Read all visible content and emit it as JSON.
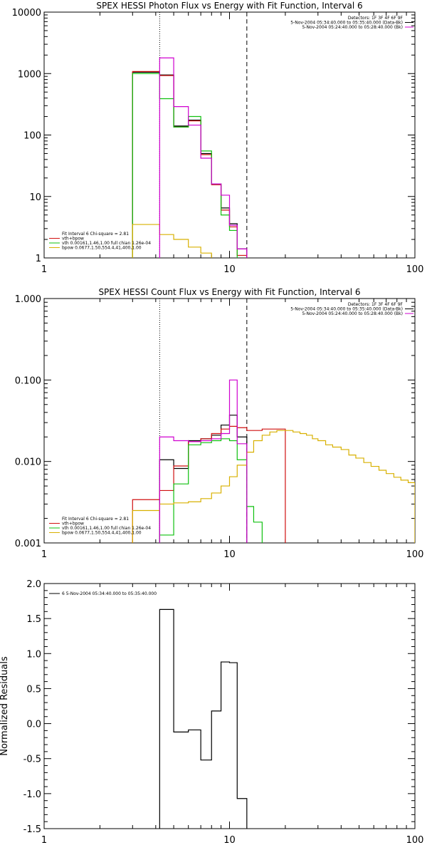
{
  "colors": {
    "black": "#000000",
    "red": "#d01010",
    "green": "#10c010",
    "yellow": "#d8b000",
    "magenta": "#d000d0"
  },
  "chart_data": [
    {
      "type": "line",
      "title": "SPEX HESSI Photon Flux vs Energy with Fit Function, Interval 6",
      "xlabel": "",
      "ylabel": "",
      "xscale": "log",
      "yscale": "log",
      "xlim": [
        1,
        100
      ],
      "ylim": [
        1,
        10000
      ],
      "x_ticks": [
        1,
        10,
        100
      ],
      "x_tick_labels": [
        "1",
        "10",
        "100"
      ],
      "y_ticks": [
        1,
        10,
        100,
        1000,
        10000
      ],
      "y_tick_labels": [
        "1",
        "10",
        "100",
        "1000",
        "10000"
      ],
      "vlines": [
        {
          "x": 4.2,
          "style": "dotted"
        },
        {
          "x": 12.4,
          "style": "dashed"
        }
      ],
      "legend_top_right": [
        {
          "text": "Detectors: 1F 3F 4F 6F 9F",
          "color": "#000000"
        },
        {
          "text": "5-Nov-2004 05:34:40.000 to 05:35:40.000 (Data-Bk)",
          "color": "#000000",
          "swatch": "#000000"
        },
        {
          "text": "5-Nov-2004 05:24:40.000 to 05:28:40.000 (Bk)",
          "color": "#000000",
          "swatch": "#d000d0"
        }
      ],
      "legend_bottom_left": [
        {
          "text": "Fit Interval 6   Chi-square = 2.81",
          "color": "#000000"
        },
        {
          "text": "vth+bpow",
          "color": "#000000",
          "swatch": "#d01010"
        },
        {
          "text": "vth 0.00161,1.46,1.00  full chian 1.26e-04",
          "color": "#000000",
          "swatch": "#10c010"
        },
        {
          "text": "bpow 0.0677,1.50,554.4,41,400,1.00",
          "color": "#000000",
          "swatch": "#d8b000"
        }
      ],
      "series": [
        {
          "color": "#000000",
          "edges": [
            3,
            4.2,
            5,
            6,
            7,
            8,
            9,
            10,
            11,
            12.4
          ],
          "values": [
            1050,
            950,
            140,
            175,
            50,
            16,
            6.5,
            3.6,
            1.4
          ]
        },
        {
          "color": "#d01010",
          "edges": [
            3,
            4.2,
            5,
            6,
            7,
            8,
            9,
            10,
            11,
            12.4
          ],
          "values": [
            1080,
            930,
            135,
            170,
            48,
            15.5,
            6,
            3.2,
            1.1
          ]
        },
        {
          "color": "#10c010",
          "edges": [
            3,
            4.2,
            5,
            6,
            7,
            8,
            9,
            10,
            11,
            12.4
          ],
          "values": [
            1000,
            390,
            135,
            200,
            55,
            16,
            5,
            2.8,
            1
          ]
        },
        {
          "color": "#d8b000",
          "edges": [
            3,
            4.2,
            5,
            6,
            7,
            8,
            9,
            10,
            11,
            12.4
          ],
          "values": [
            3.5,
            2.4,
            2,
            1.5,
            1.2,
            1,
            1,
            1,
            1
          ]
        },
        {
          "color": "#d000d0",
          "edges": [
            4.2,
            5,
            6,
            7,
            8,
            9,
            10,
            11,
            12.4
          ],
          "values": [
            1800,
            290,
            145,
            42,
            16,
            10.5,
            3.4,
            1.4
          ]
        }
      ]
    },
    {
      "type": "line",
      "title": "SPEX HESSI Count Flux vs Energy with Fit Function, Interval 6",
      "xlabel": "",
      "ylabel": "",
      "xscale": "log",
      "yscale": "log",
      "xlim": [
        1,
        100
      ],
      "ylim": [
        0.001,
        1
      ],
      "x_ticks": [
        1,
        10,
        100
      ],
      "x_tick_labels": [
        "1",
        "10",
        "100"
      ],
      "y_ticks": [
        0.001,
        0.01,
        0.1,
        1
      ],
      "y_tick_labels": [
        "0.001",
        "0.010",
        "0.100",
        "1.000"
      ],
      "vlines": [
        {
          "x": 4.2,
          "style": "dotted"
        },
        {
          "x": 12.4,
          "style": "dashed"
        }
      ],
      "legend_top_right": [
        {
          "text": "Detectors: 1F 3F 4F 6F 9F",
          "color": "#000000"
        },
        {
          "text": "5-Nov-2004 05:34:40.000 to 05:35:40.000 (Data-Bk)",
          "color": "#000000",
          "swatch": "#000000"
        },
        {
          "text": "5-Nov-2004 05:24:40.000 to 05:28:40.000 (Bk)",
          "color": "#000000",
          "swatch": "#d000d0"
        }
      ],
      "legend_bottom_left": [
        {
          "text": "Fit Interval 6   Chi-square = 2.81",
          "color": "#000000"
        },
        {
          "text": "vth+bpow",
          "color": "#000000",
          "swatch": "#d01010"
        },
        {
          "text": "vth 0.00161,1.46,1.00  full chian 1.26e-04",
          "color": "#000000",
          "swatch": "#10c010"
        },
        {
          "text": "bpow 0.0677,1.50,554.4,41,400,1.00",
          "color": "#000000",
          "swatch": "#d8b000"
        }
      ],
      "series": [
        {
          "color": "#000000",
          "edges": [
            4.2,
            5,
            6,
            7,
            8,
            9,
            10,
            11,
            12.4
          ],
          "values": [
            0.0105,
            0.0082,
            0.018,
            0.019,
            0.021,
            0.028,
            0.037,
            0.02
          ]
        },
        {
          "color": "#d01010",
          "edges": [
            3,
            4.2,
            5,
            6,
            7,
            8,
            9,
            10,
            11,
            12.4,
            13.5,
            15,
            16.5,
            18,
            20
          ],
          "values": [
            0.0034,
            0.0044,
            0.0088,
            0.0175,
            0.019,
            0.022,
            0.025,
            0.027,
            0.026,
            0.024,
            0.024,
            0.025,
            0.025,
            0.025
          ]
        },
        {
          "color": "#10c010",
          "edges": [
            4.2,
            5,
            6,
            7,
            8,
            9,
            10,
            11,
            12.4,
            13.5,
            15,
            16.5
          ],
          "values": [
            0.00125,
            0.0053,
            0.016,
            0.017,
            0.018,
            0.019,
            0.018,
            0.0105,
            0.0028,
            0.0018,
            0.001
          ]
        },
        {
          "color": "#d8b000",
          "edges": [
            3,
            4.2,
            5,
            6,
            7,
            8,
            9,
            10,
            11,
            12.4,
            13.5,
            15,
            16.5,
            18,
            20,
            22,
            24,
            26,
            28,
            30,
            33,
            36,
            40,
            44,
            48,
            53,
            58,
            64,
            70,
            77,
            84,
            92,
            100
          ],
          "values": [
            0.0025,
            0.003,
            0.0031,
            0.0032,
            0.0035,
            0.0041,
            0.005,
            0.0065,
            0.009,
            0.013,
            0.018,
            0.021,
            0.023,
            0.024,
            0.024,
            0.023,
            0.022,
            0.021,
            0.019,
            0.018,
            0.016,
            0.015,
            0.014,
            0.012,
            0.011,
            0.0097,
            0.0087,
            0.0078,
            0.0071,
            0.0064,
            0.0059,
            0.0055
          ]
        },
        {
          "color": "#d000d0",
          "edges": [
            4.2,
            5,
            6,
            7,
            8,
            9,
            10,
            11,
            12.4
          ],
          "values": [
            0.02,
            0.018,
            0.0175,
            0.018,
            0.019,
            0.022,
            0.1,
            0.0165
          ]
        }
      ]
    },
    {
      "type": "line",
      "title": "",
      "xlabel": "",
      "ylabel": "Normalized Residuals",
      "xscale": "log",
      "yscale": "linear",
      "xlim": [
        1,
        100
      ],
      "ylim": [
        -1.5,
        2.0
      ],
      "x_ticks": [
        1,
        10,
        100
      ],
      "x_tick_labels": [
        "1",
        "10",
        "100"
      ],
      "y_ticks": [
        -1.5,
        -1.0,
        -0.5,
        0.0,
        0.5,
        1.0,
        1.5,
        2.0
      ],
      "y_tick_labels": [
        "-1.5",
        "-1.0",
        "-0.5",
        "0.0",
        "0.5",
        "1.0",
        "1.5",
        "2.0"
      ],
      "vlines": [],
      "legend_top_left": [
        {
          "text": "6  5-Nov-2004 05:34:40.000 to 05:35:40.000",
          "color": "#000000",
          "swatch": "#000000"
        }
      ],
      "legend_bottom_left": [],
      "legend_top_right": [],
      "series": [
        {
          "color": "#000000",
          "edges": [
            4.2,
            5,
            6,
            7,
            8,
            9,
            10,
            11,
            12.4
          ],
          "values": [
            1.63,
            -0.12,
            -0.09,
            -0.52,
            0.18,
            0.88,
            0.87,
            -1.07
          ],
          "drop_to_floor": true
        }
      ]
    }
  ]
}
